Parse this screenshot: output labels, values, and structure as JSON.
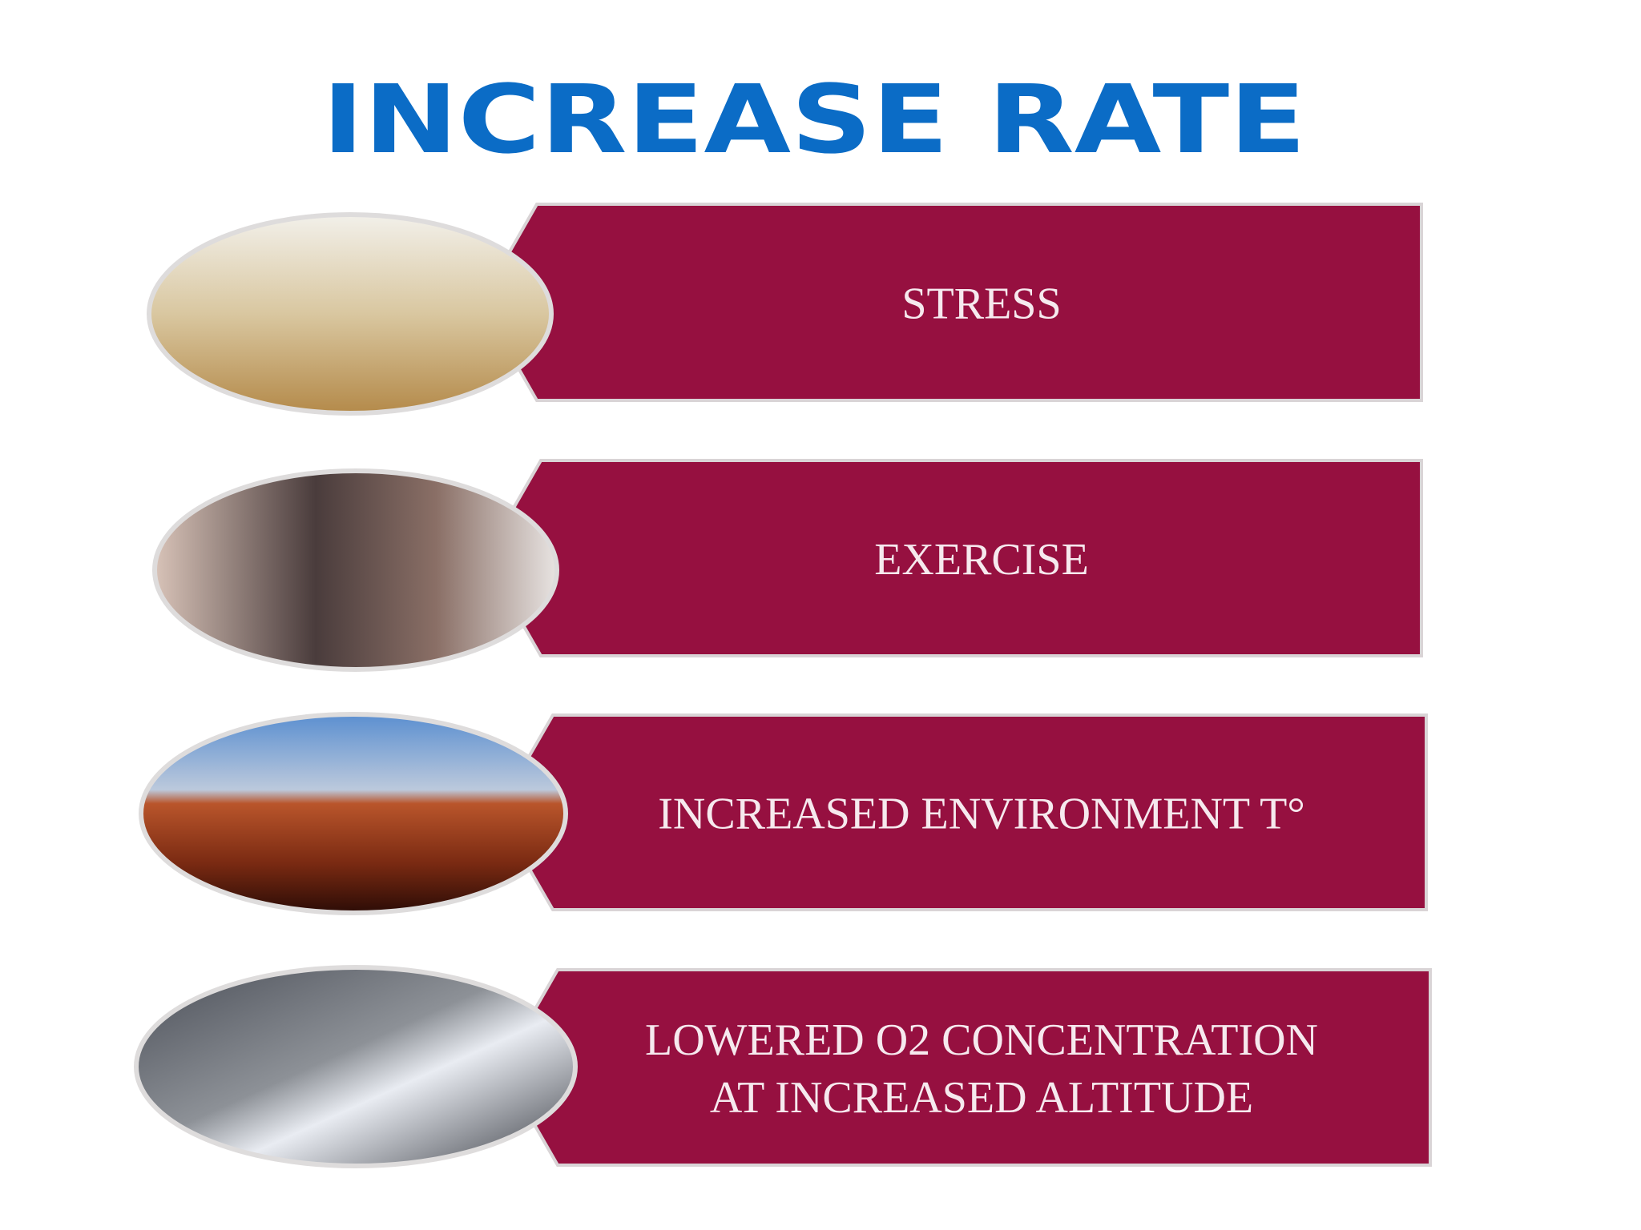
{
  "title": "INCREASE RATE",
  "items": [
    {
      "lines": [
        "STRESS"
      ]
    },
    {
      "lines": [
        "EXERCISE"
      ]
    },
    {
      "lines": [
        "INCREASED ENVIRONMENT T°"
      ]
    },
    {
      "lines": [
        "LOWERED O2 CONCENTRATION",
        "AT INCREASED ALTITUDE"
      ]
    }
  ]
}
